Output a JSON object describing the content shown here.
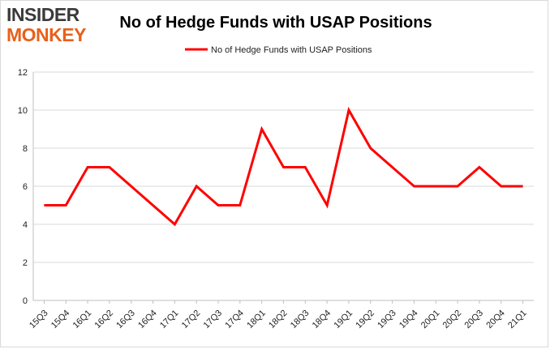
{
  "logo": {
    "line1": "INSIDER",
    "line2": "MONKEY"
  },
  "chart_data": {
    "type": "line",
    "title": "No of Hedge Funds with USAP Positions",
    "categories": [
      "15Q3",
      "15Q4",
      "16Q1",
      "16Q2",
      "16Q3",
      "16Q4",
      "17Q1",
      "17Q2",
      "17Q3",
      "17Q4",
      "18Q1",
      "18Q2",
      "18Q3",
      "18Q4",
      "19Q1",
      "19Q2",
      "19Q3",
      "19Q4",
      "20Q1",
      "20Q2",
      "20Q3",
      "20Q4",
      "21Q1"
    ],
    "series": [
      {
        "name": "No of Hedge Funds with USAP Positions",
        "values": [
          5,
          5,
          7,
          7,
          6,
          5,
          4,
          6,
          5,
          5,
          9,
          7,
          7,
          5,
          10,
          8,
          7,
          6,
          6,
          6,
          7,
          6,
          6
        ]
      }
    ],
    "ylim": [
      0,
      12
    ],
    "yticks": [
      0,
      2,
      4,
      6,
      8,
      10,
      12
    ],
    "xlabel": "",
    "ylabel": "",
    "grid": true,
    "legend": "top-center",
    "colors": {
      "line": "#ff0000",
      "grid": "#d9d9d9",
      "logo_dark": "#3a3a3a",
      "logo_accent": "#e8601c"
    }
  }
}
